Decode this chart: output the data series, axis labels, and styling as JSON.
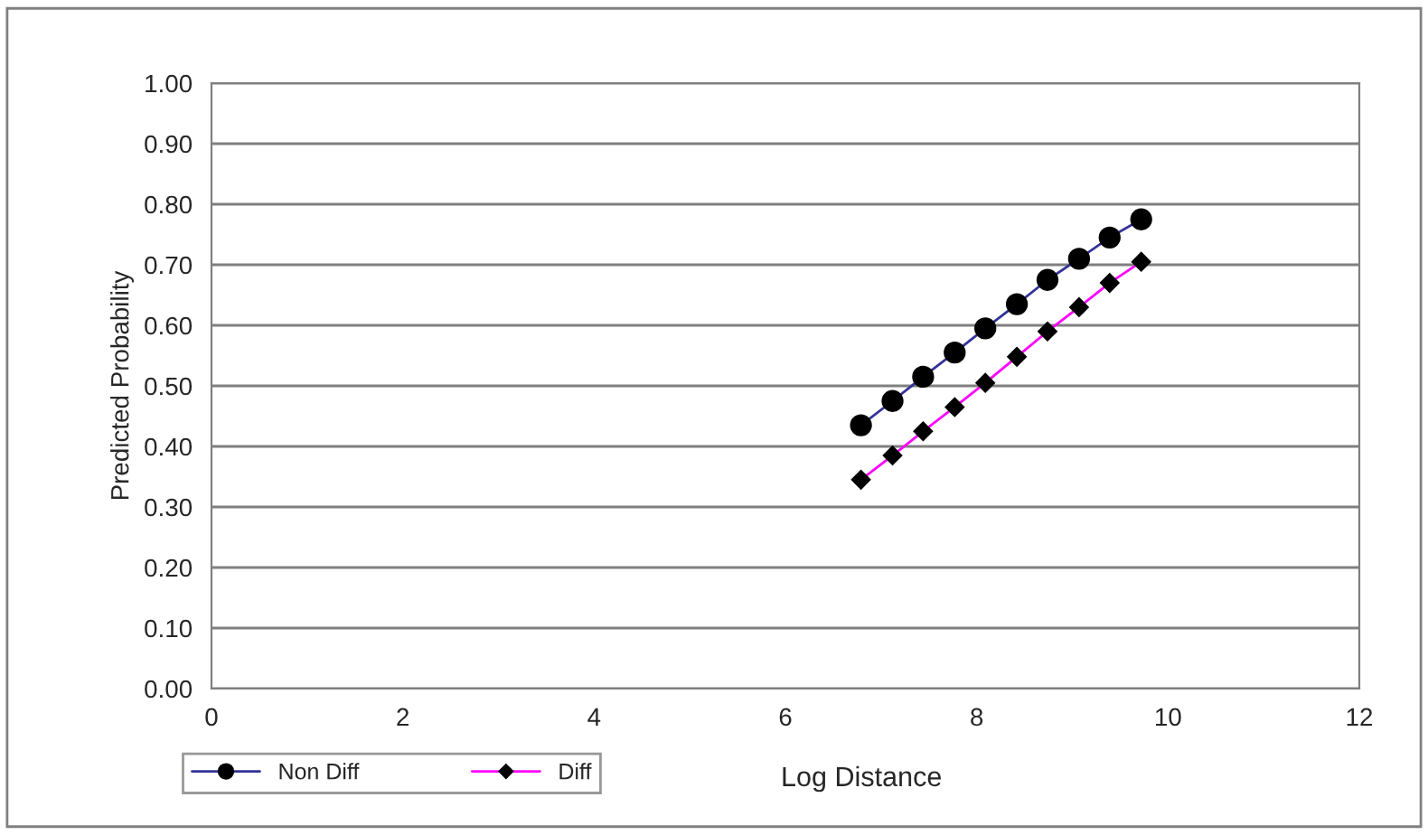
{
  "chart_data": {
    "type": "line",
    "xlabel": "Log Distance",
    "ylabel": "Predicted Probability",
    "x": [
      6.79,
      7.12,
      7.44,
      7.77,
      8.09,
      8.42,
      8.74,
      9.07,
      9.39,
      9.72
    ],
    "series": [
      {
        "name": "Non Diff",
        "color": "#333399",
        "marker": "circle",
        "values": [
          0.435,
          0.475,
          0.515,
          0.555,
          0.595,
          0.635,
          0.675,
          0.71,
          0.745,
          0.775
        ]
      },
      {
        "name": "Diff",
        "color": "#ff00ff",
        "marker": "diamond",
        "values": [
          0.345,
          0.385,
          0.425,
          0.465,
          0.505,
          0.548,
          0.59,
          0.63,
          0.67,
          0.705
        ]
      }
    ],
    "xlim": [
      0,
      12
    ],
    "xticks": [
      0,
      2,
      4,
      6,
      8,
      10,
      12
    ],
    "ylim": [
      0,
      1
    ],
    "yticks": [
      {
        "value": 0,
        "label": "0.00"
      },
      {
        "value": 0.1,
        "label": "0.10"
      },
      {
        "value": 0.2,
        "label": "0.20"
      },
      {
        "value": 0.3,
        "label": "0.30"
      },
      {
        "value": 0.4,
        "label": "0.40"
      },
      {
        "value": 0.5,
        "label": "0.50"
      },
      {
        "value": 0.6,
        "label": "0.60"
      },
      {
        "value": 0.7,
        "label": "0.70"
      },
      {
        "value": 0.8,
        "label": "0.80"
      },
      {
        "value": 0.9,
        "label": "0.90"
      },
      {
        "value": 1,
        "label": "1.00"
      }
    ],
    "grid": "y",
    "legend": "bottom left"
  }
}
